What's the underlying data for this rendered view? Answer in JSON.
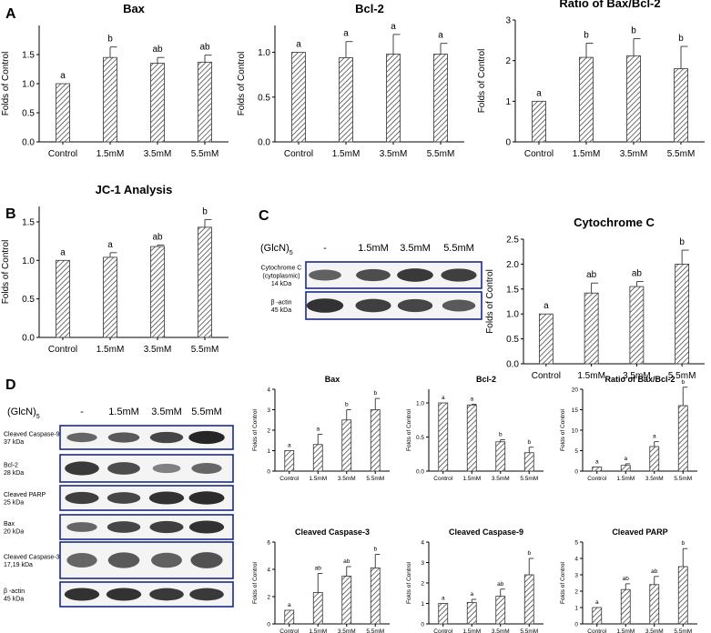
{
  "panel_letters": [
    "A",
    "B",
    "C",
    "D"
  ],
  "colors": {
    "bar_hatch": "#333333",
    "axis": "#000000",
    "blot_border": "#1a2a8c",
    "band": "#1a1a1a"
  },
  "blot_c": {
    "treatment_label": "(GlcN)",
    "treatment_subscript": "5",
    "lanes": [
      "-",
      "1.5mM",
      "3.5mM",
      "5.5mM"
    ],
    "rows": [
      {
        "label_lines": [
          "Cytochrome C",
          "(cytoplasmic)",
          "14 kDa"
        ],
        "intensities": [
          0.55,
          0.7,
          0.85,
          0.8
        ]
      },
      {
        "label_lines": [
          "β -actin",
          "45 kDa"
        ],
        "intensities": [
          0.9,
          0.8,
          0.75,
          0.6
        ]
      }
    ]
  },
  "blot_d": {
    "treatment_label": "(GlcN)",
    "treatment_subscript": "5",
    "lanes": [
      "-",
      "1.5mM",
      "3.5mM",
      "5.5mM"
    ],
    "rows": [
      {
        "label_lines": [
          "Cleaved Caspase-9",
          "37 kDa"
        ],
        "intensities": [
          0.5,
          0.6,
          0.75,
          1.0
        ]
      },
      {
        "label_lines": [
          "Bcl-2",
          "28 kDa"
        ],
        "intensities": [
          0.85,
          0.7,
          0.3,
          0.5
        ]
      },
      {
        "label_lines": [
          "Cleaved PARP",
          "25 kDa"
        ],
        "intensities": [
          0.8,
          0.75,
          0.9,
          0.95
        ]
      },
      {
        "label_lines": [
          "Bax",
          "20 kDa"
        ],
        "intensities": [
          0.5,
          0.75,
          0.8,
          0.9
        ]
      },
      {
        "label_lines": [
          "Cleaved Caspase-3",
          "17,19 kDa"
        ],
        "intensities": [
          0.5,
          0.6,
          0.55,
          0.65
        ]
      },
      {
        "label_lines": [
          "β -actin",
          "45 kDa"
        ],
        "intensities": [
          0.9,
          0.9,
          0.85,
          0.85
        ]
      }
    ]
  },
  "chart_data": [
    {
      "id": "A-bax",
      "type": "bar",
      "title": "Bax",
      "ylabel": "Folds of Control",
      "xlabel": "",
      "categories": [
        "Control",
        "1.5mM",
        "3.5mM",
        "5.5mM"
      ],
      "values": [
        1.0,
        1.45,
        1.35,
        1.37
      ],
      "errors": [
        0,
        0.18,
        0.1,
        0.12
      ],
      "sig": [
        "a",
        "b",
        "ab",
        "ab"
      ],
      "ylim": [
        0,
        2.0
      ],
      "yticks": [
        "0.0",
        "0.5",
        "1.0",
        "1.5"
      ]
    },
    {
      "id": "A-bcl2",
      "type": "bar",
      "title": "Bcl-2",
      "ylabel": "Folds of Control",
      "xlabel": "",
      "categories": [
        "Control",
        "1.5mM",
        "3.5mM",
        "5.5mM"
      ],
      "values": [
        1.0,
        0.94,
        0.98,
        0.98
      ],
      "errors": [
        0,
        0.18,
        0.22,
        0.12
      ],
      "sig": [
        "a",
        "a",
        "a",
        "a"
      ],
      "ylim": [
        0,
        1.3
      ],
      "yticks": [
        "0.0",
        "0.5",
        "1.0"
      ]
    },
    {
      "id": "A-ratio",
      "type": "bar",
      "title": "Ratio of Bax/Bcl-2",
      "ylabel": "Folds of Control",
      "xlabel": "",
      "categories": [
        "Control",
        "1.5mM",
        "3.5mM",
        "5.5mM"
      ],
      "values": [
        1.0,
        2.08,
        2.12,
        1.8
      ],
      "errors": [
        0,
        0.35,
        0.42,
        0.55
      ],
      "sig": [
        "a",
        "b",
        "b",
        "b"
      ],
      "ylim": [
        0,
        3.0
      ],
      "yticks": [
        "0",
        "1",
        "2",
        "3"
      ]
    },
    {
      "id": "B-jc1",
      "type": "bar",
      "title": "JC-1 Analysis",
      "ylabel": "Folds of Control",
      "xlabel": "",
      "categories": [
        "Control",
        "1.5mM",
        "3.5mM",
        "5.5mM"
      ],
      "values": [
        1.0,
        1.04,
        1.18,
        1.43
      ],
      "errors": [
        0,
        0.06,
        0.02,
        0.1
      ],
      "sig": [
        "a",
        "a",
        "ab",
        "b"
      ],
      "ylim": [
        0,
        1.7
      ],
      "yticks": [
        "0.0",
        "0.5",
        "1.0",
        "1.5"
      ]
    },
    {
      "id": "C-cytc",
      "type": "bar",
      "title": "Cytochrome C",
      "ylabel": "Folds of Control",
      "xlabel": "",
      "categories": [
        "Control",
        "1.5mM",
        "3.5mM",
        "5.5mM"
      ],
      "values": [
        1.0,
        1.42,
        1.55,
        2.0
      ],
      "errors": [
        0,
        0.2,
        0.1,
        0.28
      ],
      "sig": [
        "a",
        "ab",
        "ab",
        "b"
      ],
      "ylim": [
        0,
        2.5
      ],
      "yticks": [
        "0.0",
        "0.5",
        "1.0",
        "1.5",
        "2.0",
        "2.5"
      ]
    },
    {
      "id": "D-bax",
      "type": "bar",
      "title": "Bax",
      "ylabel": "Folds of Control",
      "xlabel": "",
      "categories": [
        "Control",
        "1.5mM",
        "3.5mM",
        "5.5mM"
      ],
      "values": [
        1.0,
        1.3,
        2.5,
        3.0
      ],
      "errors": [
        0,
        0.5,
        0.5,
        0.55
      ],
      "sig": [
        "a",
        "a",
        "b",
        "b"
      ],
      "ylim": [
        0,
        4
      ],
      "yticks": [
        "0",
        "1",
        "2",
        "3",
        "4"
      ]
    },
    {
      "id": "D-bcl2",
      "type": "bar",
      "title": "Bcl-2",
      "ylabel": "Folds of Control",
      "xlabel": "",
      "categories": [
        "Control",
        "1.5mM",
        "3.5mM",
        "5.5mM"
      ],
      "values": [
        1.0,
        0.97,
        0.43,
        0.27
      ],
      "errors": [
        0,
        0.01,
        0.03,
        0.08
      ],
      "sig": [
        "a",
        "a",
        "b",
        "b"
      ],
      "ylim": [
        0,
        1.2
      ],
      "yticks": [
        "0.0",
        "0.5",
        "1.0"
      ]
    },
    {
      "id": "D-ratio",
      "type": "bar",
      "title": "Ratio of Bax/Bcl-2",
      "ylabel": "Folds of Control",
      "xlabel": "",
      "categories": [
        "Control",
        "1.5mM",
        "3.5mM",
        "5.5mM"
      ],
      "values": [
        1.0,
        1.4,
        6.0,
        16.0
      ],
      "errors": [
        0,
        0.4,
        1.2,
        4.5
      ],
      "sig": [
        "a",
        "a",
        "a",
        "b"
      ],
      "ylim": [
        0,
        20
      ],
      "yticks": [
        "0",
        "5",
        "10",
        "15",
        "20"
      ]
    },
    {
      "id": "D-casp3",
      "type": "bar",
      "title": "Cleaved Caspase-3",
      "ylabel": "Folds of Control",
      "xlabel": "",
      "categories": [
        "Control",
        "1.5mM",
        "3.5mM",
        "5.5mM"
      ],
      "values": [
        1.0,
        2.3,
        3.5,
        4.1
      ],
      "errors": [
        0,
        1.4,
        0.7,
        1.0
      ],
      "sig": [
        "a",
        "ab",
        "ab",
        "b"
      ],
      "ylim": [
        0,
        6
      ],
      "yticks": [
        "0",
        "2",
        "4",
        "6"
      ]
    },
    {
      "id": "D-casp9",
      "type": "bar",
      "title": "Cleaved Caspase-9",
      "ylabel": "Folds of Control",
      "xlabel": "",
      "categories": [
        "Control",
        "1.5mM",
        "3.5mM",
        "5.5mM"
      ],
      "values": [
        1.0,
        1.05,
        1.35,
        2.4
      ],
      "errors": [
        0,
        0.15,
        0.35,
        0.8
      ],
      "sig": [
        "a",
        "a",
        "ab",
        "b"
      ],
      "ylim": [
        0,
        4
      ],
      "yticks": [
        "0",
        "1",
        "2",
        "3",
        "4"
      ]
    },
    {
      "id": "D-parp",
      "type": "bar",
      "title": "Cleaved PARP",
      "ylabel": "Folds of Control",
      "xlabel": "",
      "categories": [
        "Control",
        "1.5mM",
        "3.5mM",
        "5.5mM"
      ],
      "values": [
        1.0,
        2.1,
        2.4,
        3.5
      ],
      "errors": [
        0,
        0.35,
        0.5,
        1.1
      ],
      "sig": [
        "a",
        "ab",
        "ab",
        "b"
      ],
      "ylim": [
        0,
        5
      ],
      "yticks": [
        "0",
        "1",
        "2",
        "3",
        "4",
        "5"
      ]
    }
  ]
}
